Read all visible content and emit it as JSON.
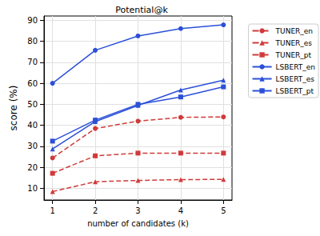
{
  "chart_data": {
    "type": "line",
    "title": "Potential@k",
    "x_label": "number of candidates (k)",
    "y_label": "score (%)",
    "x": [
      1,
      2,
      3,
      4,
      5
    ],
    "series": [
      {
        "name": "TUNER_en",
        "color": "#d03a3a",
        "marker": "circle",
        "line_style": "dashed",
        "values": [
          24.5,
          38.5,
          42,
          43.8,
          44
        ]
      },
      {
        "name": "TUNER_es",
        "color": "#d03a3a",
        "marker": "triangle",
        "line_style": "dashed",
        "values": [
          8.5,
          13.2,
          13.8,
          14.2,
          14.3
        ]
      },
      {
        "name": "TUNER_pt",
        "color": "#d03a3a",
        "marker": "square",
        "line_style": "dashed",
        "values": [
          17.2,
          25.5,
          26.8,
          26.8,
          26.8
        ]
      },
      {
        "name": "LSBERT_en",
        "color": "#2b50d8",
        "marker": "circle",
        "line_style": "solid",
        "values": [
          60,
          75.7,
          82.5,
          86,
          87.8
        ]
      },
      {
        "name": "LSBERT_es",
        "color": "#2b50d8",
        "marker": "triangle",
        "line_style": "solid",
        "values": [
          28.8,
          41.8,
          49.5,
          56.8,
          61.5
        ]
      },
      {
        "name": "LSBERT_pt",
        "color": "#2b50d8",
        "marker": "square",
        "line_style": "solid",
        "values": [
          32.5,
          42.5,
          50,
          53.5,
          58.3
        ]
      }
    ],
    "xlim": [
      0.8,
      5.2
    ],
    "xticks": [
      1,
      2,
      3,
      4,
      5
    ],
    "ylim": [
      4.5,
      92
    ],
    "yticks": [
      10,
      20,
      30,
      40,
      50,
      60,
      70,
      80,
      90
    ],
    "grid": true,
    "legend": "right"
  }
}
